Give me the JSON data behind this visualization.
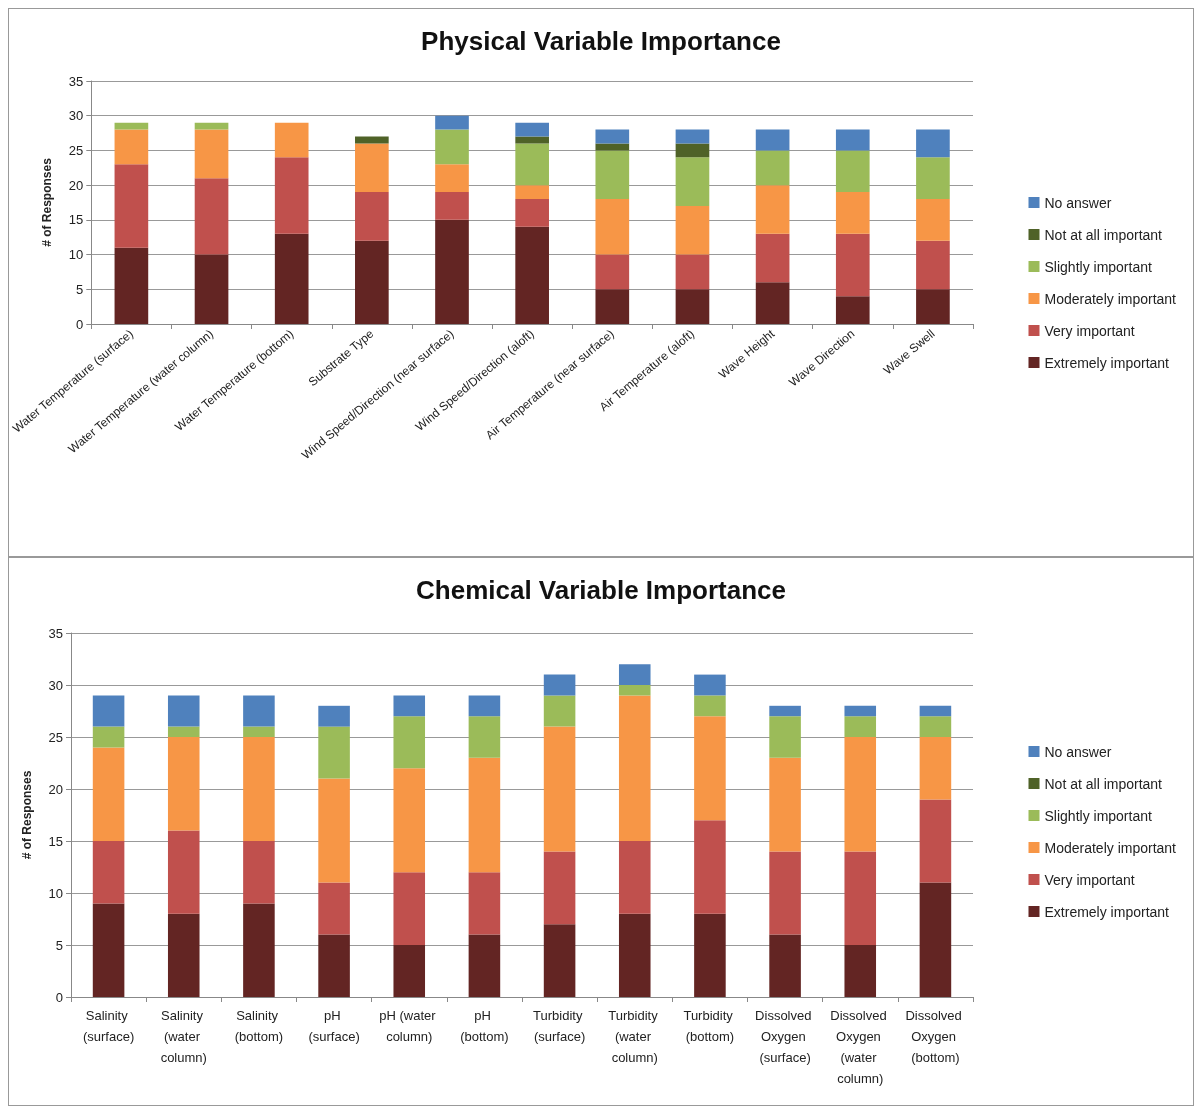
{
  "chart_data": [
    {
      "type": "bar",
      "title": "Physical Variable Importance",
      "ylabel": "# of Responses",
      "stacked": true,
      "grid": "y",
      "legend": "right",
      "ylim": [
        0,
        35
      ],
      "yticks": [
        0,
        5,
        10,
        15,
        20,
        25,
        30,
        35
      ],
      "categories": [
        "Water Temperature (surface)",
        "Water Temperature (water column)",
        "Water Temperature (bottom)",
        "Substrate Type",
        "Wind Speed/Direction (near surface)",
        "Wind Speed/Direction (aloft)",
        "Air Temperature (near surface)",
        "Air Temperature (aloft)",
        "Wave Height",
        "Wave Direction",
        "Wave Swell"
      ],
      "series": [
        {
          "name": "Extremely important",
          "color": "#632523",
          "values": [
            11,
            10,
            13,
            12,
            15,
            14,
            5,
            5,
            6,
            4,
            5
          ]
        },
        {
          "name": "Very important",
          "color": "#c0504d",
          "values": [
            12,
            11,
            11,
            7,
            4,
            4,
            5,
            5,
            7,
            9,
            7
          ]
        },
        {
          "name": "Moderately important",
          "color": "#f79646",
          "values": [
            5,
            7,
            5,
            7,
            4,
            2,
            8,
            7,
            7,
            6,
            6
          ]
        },
        {
          "name": "Slightly important",
          "color": "#9bbb59",
          "values": [
            1,
            1,
            0,
            0,
            5,
            6,
            7,
            7,
            5,
            6,
            6
          ]
        },
        {
          "name": "Not at all important",
          "color": "#4f6228",
          "values": [
            0,
            0,
            0,
            1,
            0,
            1,
            1,
            2,
            0,
            0,
            0
          ]
        },
        {
          "name": "No answer",
          "color": "#4f81bd",
          "values": [
            0,
            0,
            0,
            0,
            2,
            2,
            2,
            2,
            3,
            3,
            4
          ]
        }
      ]
    },
    {
      "type": "bar",
      "title": "Chemical Variable Importance",
      "ylabel": "# of Responses",
      "stacked": true,
      "grid": "y",
      "legend": "right",
      "ylim": [
        0,
        35
      ],
      "yticks": [
        0,
        5,
        10,
        15,
        20,
        25,
        30,
        35
      ],
      "categories": [
        "Salinity (surface)",
        "Salinity (water column)",
        "Salinity (bottom)",
        "pH (surface)",
        "pH (water column)",
        "pH (bottom)",
        "Turbidity (surface)",
        "Turbidity (water column)",
        "Turbidity (bottom)",
        "Dissolved Oxygen (surface)",
        "Dissolved Oxygen (water column)",
        "Dissolved Oxygen (bottom)"
      ],
      "series": [
        {
          "name": "Extremely important",
          "color": "#632523",
          "values": [
            9,
            8,
            9,
            6,
            5,
            6,
            7,
            8,
            8,
            6,
            5,
            11
          ]
        },
        {
          "name": "Very important",
          "color": "#c0504d",
          "values": [
            6,
            8,
            6,
            5,
            7,
            6,
            7,
            7,
            9,
            8,
            9,
            8
          ]
        },
        {
          "name": "Moderately important",
          "color": "#f79646",
          "values": [
            9,
            9,
            10,
            10,
            10,
            11,
            12,
            14,
            10,
            9,
            11,
            6
          ]
        },
        {
          "name": "Slightly important",
          "color": "#9bbb59",
          "values": [
            2,
            1,
            1,
            5,
            5,
            4,
            3,
            1,
            2,
            4,
            2,
            2
          ]
        },
        {
          "name": "Not at all important",
          "color": "#4f6228",
          "values": [
            0,
            0,
            0,
            0,
            0,
            0,
            0,
            0,
            0,
            0,
            0,
            0
          ]
        },
        {
          "name": "No answer",
          "color": "#4f81bd",
          "values": [
            3,
            3,
            3,
            2,
            2,
            2,
            2,
            2,
            2,
            1,
            1,
            1
          ]
        }
      ]
    }
  ]
}
